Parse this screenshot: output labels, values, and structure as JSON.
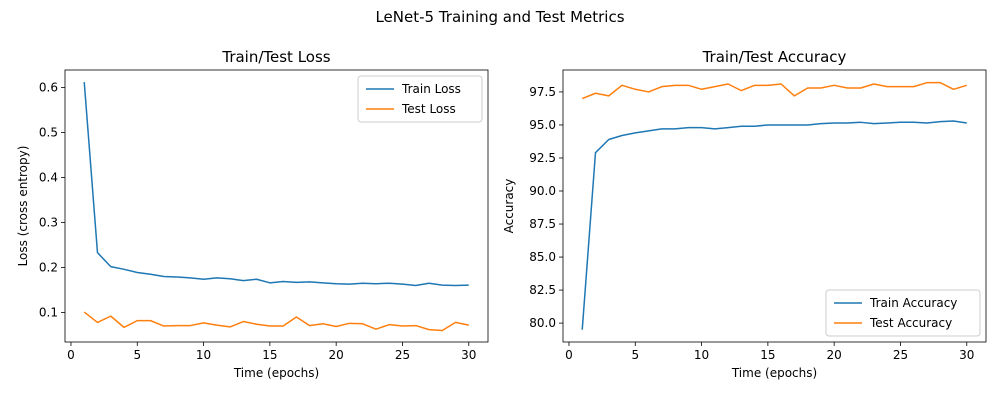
{
  "figure": {
    "suptitle": "LeNet-5 Training and Test Metrics"
  },
  "colors": {
    "series1": "#1f77b4",
    "series2": "#ff7f0e"
  },
  "chart_data": [
    {
      "type": "line",
      "title": "Train/Test Loss",
      "xlabel": "Time (epochs)",
      "ylabel": "Loss (cross entropy)",
      "xlim": [
        -0.45,
        31.45
      ],
      "ylim": [
        0.0345,
        0.6389
      ],
      "xticks": [
        0,
        5,
        10,
        15,
        20,
        25,
        30
      ],
      "yticks": [
        0.1,
        0.2,
        0.3,
        0.4,
        0.5,
        0.6
      ],
      "ytick_labels": [
        "0.1",
        "0.2",
        "0.3",
        "0.4",
        "0.5",
        "0.6"
      ],
      "legend": "top-right",
      "x": [
        1,
        2,
        3,
        4,
        5,
        6,
        7,
        8,
        9,
        10,
        11,
        12,
        13,
        14,
        15,
        16,
        17,
        18,
        19,
        20,
        21,
        22,
        23,
        24,
        25,
        26,
        27,
        28,
        29,
        30
      ],
      "series": [
        {
          "name": "Train Loss",
          "color": "#1f77b4",
          "values": [
            0.612,
            0.233,
            0.202,
            0.196,
            0.189,
            0.185,
            0.18,
            0.179,
            0.177,
            0.174,
            0.177,
            0.175,
            0.171,
            0.174,
            0.166,
            0.169,
            0.167,
            0.168,
            0.166,
            0.164,
            0.163,
            0.165,
            0.164,
            0.165,
            0.163,
            0.16,
            0.165,
            0.161,
            0.16,
            0.161
          ]
        },
        {
          "name": "Test Loss",
          "color": "#ff7f0e",
          "values": [
            0.101,
            0.078,
            0.092,
            0.067,
            0.082,
            0.082,
            0.07,
            0.071,
            0.071,
            0.077,
            0.072,
            0.068,
            0.08,
            0.074,
            0.07,
            0.07,
            0.09,
            0.071,
            0.075,
            0.069,
            0.076,
            0.075,
            0.063,
            0.073,
            0.07,
            0.071,
            0.062,
            0.06,
            0.078,
            0.072
          ]
        }
      ]
    },
    {
      "type": "line",
      "title": "Train/Test Accuracy",
      "xlabel": "Time (epochs)",
      "ylabel": "Accuracy",
      "xlim": [
        -0.45,
        31.45
      ],
      "ylim": [
        78.57,
        99.16
      ],
      "xticks": [
        0,
        5,
        10,
        15,
        20,
        25,
        30
      ],
      "yticks": [
        80,
        82.5,
        85,
        87.5,
        90,
        92.5,
        95,
        97.5
      ],
      "ytick_labels": [
        "80.0",
        "82.5",
        "85.0",
        "87.5",
        "90.0",
        "92.5",
        "95.0",
        "97.5"
      ],
      "legend": "bottom-right",
      "x": [
        1,
        2,
        3,
        4,
        5,
        6,
        7,
        8,
        9,
        10,
        11,
        12,
        13,
        14,
        15,
        16,
        17,
        18,
        19,
        20,
        21,
        22,
        23,
        24,
        25,
        26,
        27,
        28,
        29,
        30
      ],
      "series": [
        {
          "name": "Train Accuracy",
          "color": "#1f77b4",
          "values": [
            79.5,
            92.9,
            93.9,
            94.2,
            94.4,
            94.55,
            94.7,
            94.7,
            94.8,
            94.8,
            94.7,
            94.8,
            94.9,
            94.9,
            95.0,
            95.0,
            95.0,
            95.0,
            95.1,
            95.15,
            95.15,
            95.2,
            95.1,
            95.15,
            95.2,
            95.2,
            95.15,
            95.25,
            95.3,
            95.15
          ]
        },
        {
          "name": "Test Accuracy",
          "color": "#ff7f0e",
          "values": [
            97.0,
            97.4,
            97.2,
            98.0,
            97.7,
            97.5,
            97.9,
            98.0,
            98.0,
            97.7,
            97.9,
            98.1,
            97.6,
            98.0,
            98.0,
            98.1,
            97.2,
            97.8,
            97.8,
            98.0,
            97.8,
            97.8,
            98.1,
            97.9,
            97.9,
            97.9,
            98.2,
            98.2,
            97.7,
            98.0
          ]
        }
      ]
    }
  ]
}
